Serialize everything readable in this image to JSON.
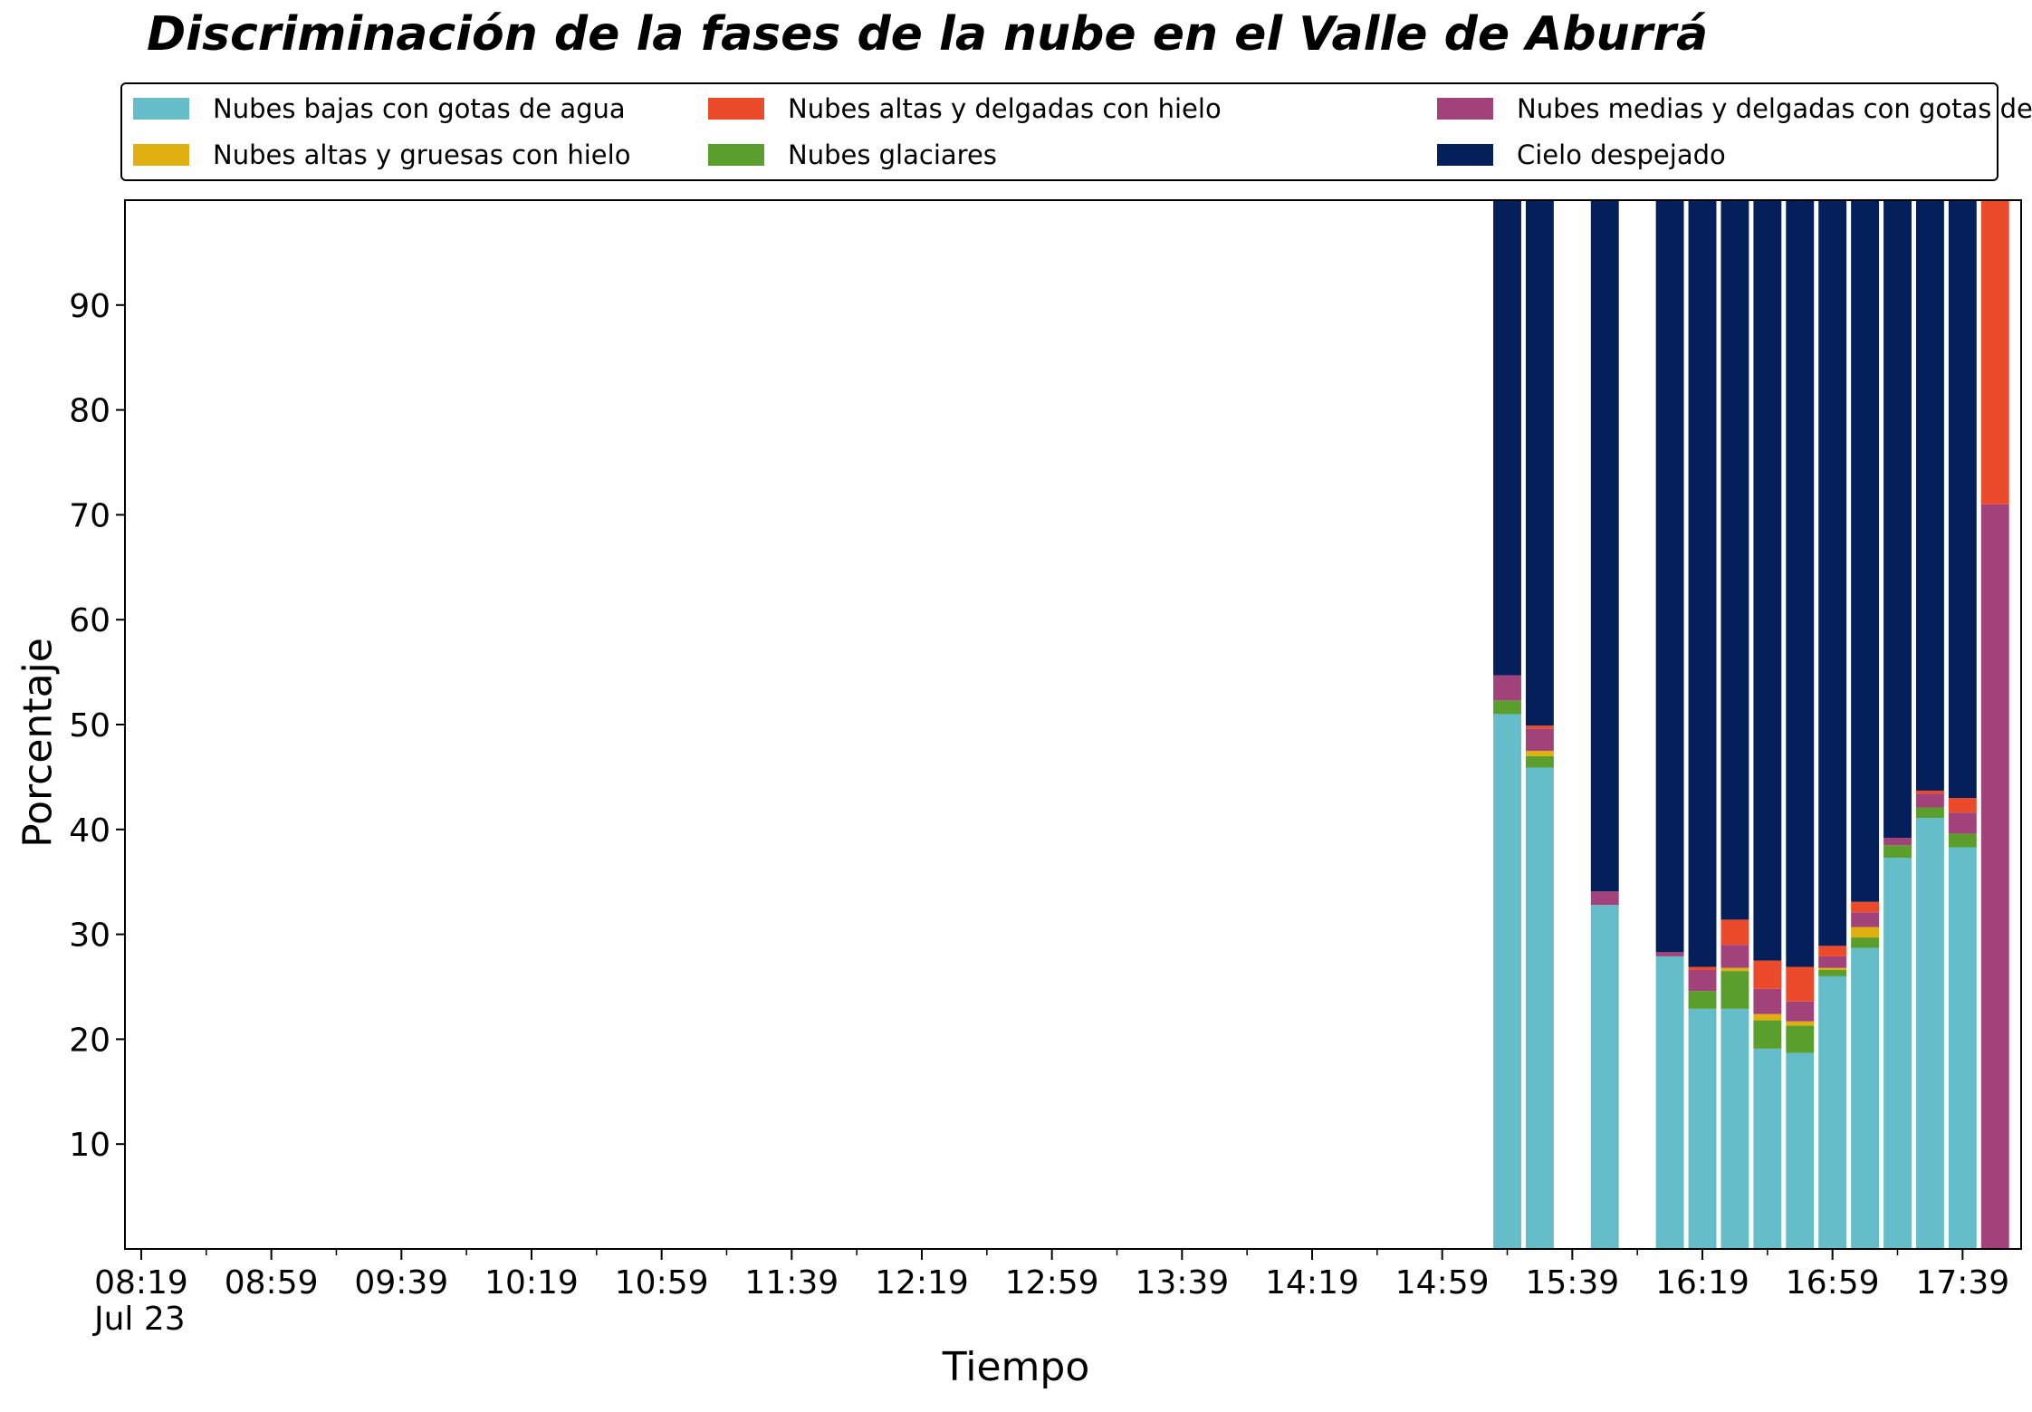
{
  "chart_data": {
    "type": "bar",
    "stacked": true,
    "title": "Discriminación de la fases de la nube en el Valle de Aburrá",
    "xlabel": "Tiempo",
    "ylabel": "Porcentaje",
    "ylim": [
      0,
      100
    ],
    "yticks": [
      10,
      20,
      30,
      40,
      50,
      60,
      70,
      80,
      90
    ],
    "xlim": [
      "08:14",
      "17:57"
    ],
    "xtick_labels": [
      "08:19",
      "08:59",
      "09:39",
      "10:19",
      "10:59",
      "11:39",
      "12:19",
      "12:59",
      "13:39",
      "14:19",
      "14:59",
      "15:39",
      "16:19",
      "16:59",
      "17:39"
    ],
    "x_date_label": "Jul 23",
    "bar_interval_minutes": 10,
    "legend_position": "top",
    "grid": false,
    "categories": [
      "15:19",
      "15:29",
      "15:49",
      "16:09",
      "16:19",
      "16:29",
      "16:39",
      "16:49",
      "16:59",
      "17:09",
      "17:19",
      "17:29",
      "17:39",
      "17:49"
    ],
    "series": [
      {
        "name": "Nubes bajas con gotas de agua",
        "color": "#65bdc9",
        "values": [
          51.0,
          45.9,
          32.8,
          27.9,
          22.9,
          22.9,
          19.1,
          18.7,
          26.0,
          28.7,
          37.3,
          41.1,
          38.3,
          0
        ]
      },
      {
        "name": "Nubes glaciares",
        "color": "#5a9e2e",
        "values": [
          1.3,
          1.1,
          0,
          0,
          1.7,
          3.6,
          2.7,
          2.6,
          0.6,
          1.0,
          1.2,
          1.0,
          1.3,
          0
        ]
      },
      {
        "name": "Nubes altas y gruesas con hielo",
        "color": "#e0b010",
        "values": [
          0,
          0.5,
          0,
          0,
          0,
          0.3,
          0.6,
          0.4,
          0.2,
          1.0,
          0,
          0,
          0,
          0
        ]
      },
      {
        "name": "Nubes medias y delgadas con gotas de agua",
        "color": "#a1427a",
        "values": [
          2.4,
          2.1,
          1.3,
          0.4,
          2.0,
          2.2,
          2.4,
          1.9,
          1.1,
          1.4,
          0.7,
          1.3,
          2.0,
          71.0
        ]
      },
      {
        "name": "Nubes altas y delgadas con hielo",
        "color": "#eb4a2b",
        "values": [
          0,
          0.3,
          0,
          0,
          0.3,
          2.4,
          2.7,
          3.3,
          1.0,
          1.0,
          0,
          0.3,
          1.4,
          29.0
        ]
      },
      {
        "name": "Cielo despejado",
        "color": "#051f5b",
        "values": [
          45.3,
          50.1,
          65.9,
          71.7,
          73.1,
          68.6,
          72.5,
          73.1,
          71.1,
          66.9,
          60.8,
          56.3,
          57.0,
          0
        ]
      }
    ]
  }
}
